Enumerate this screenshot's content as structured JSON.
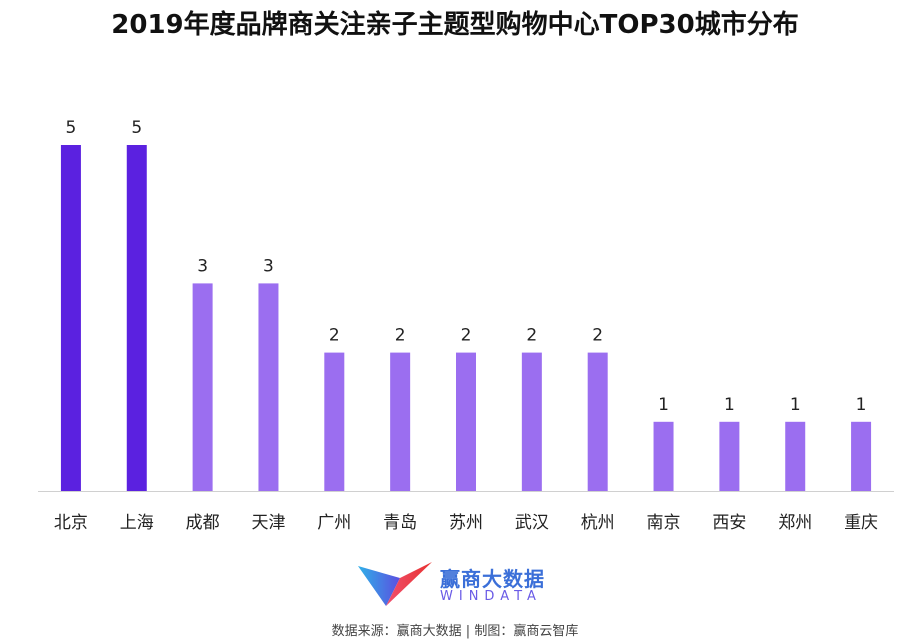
{
  "chart_data": {
    "type": "bar",
    "title": "2019年度品牌商关注亲子主题型购物中心TOP30城市分布",
    "categories": [
      "北京",
      "上海",
      "成都",
      "天津",
      "广州",
      "青岛",
      "苏州",
      "武汉",
      "杭州",
      "南京",
      "西安",
      "郑州",
      "重庆"
    ],
    "values": [
      5,
      5,
      3,
      3,
      2,
      2,
      2,
      2,
      2,
      1,
      1,
      1,
      1
    ],
    "highlight_color": "#5b21e0",
    "bar_color": "#9b6ef0",
    "highlighted_categories": [
      "北京",
      "上海"
    ],
    "ylim": [
      0,
      5
    ],
    "grid": false,
    "data_labels": true
  },
  "logo": {
    "name_cn": "赢商大数据",
    "name_en": "WINDATA",
    "icon": "windata-logo-icon"
  },
  "footer": {
    "source": "数据来源：赢商大数据 | 制图：赢商云智库"
  }
}
